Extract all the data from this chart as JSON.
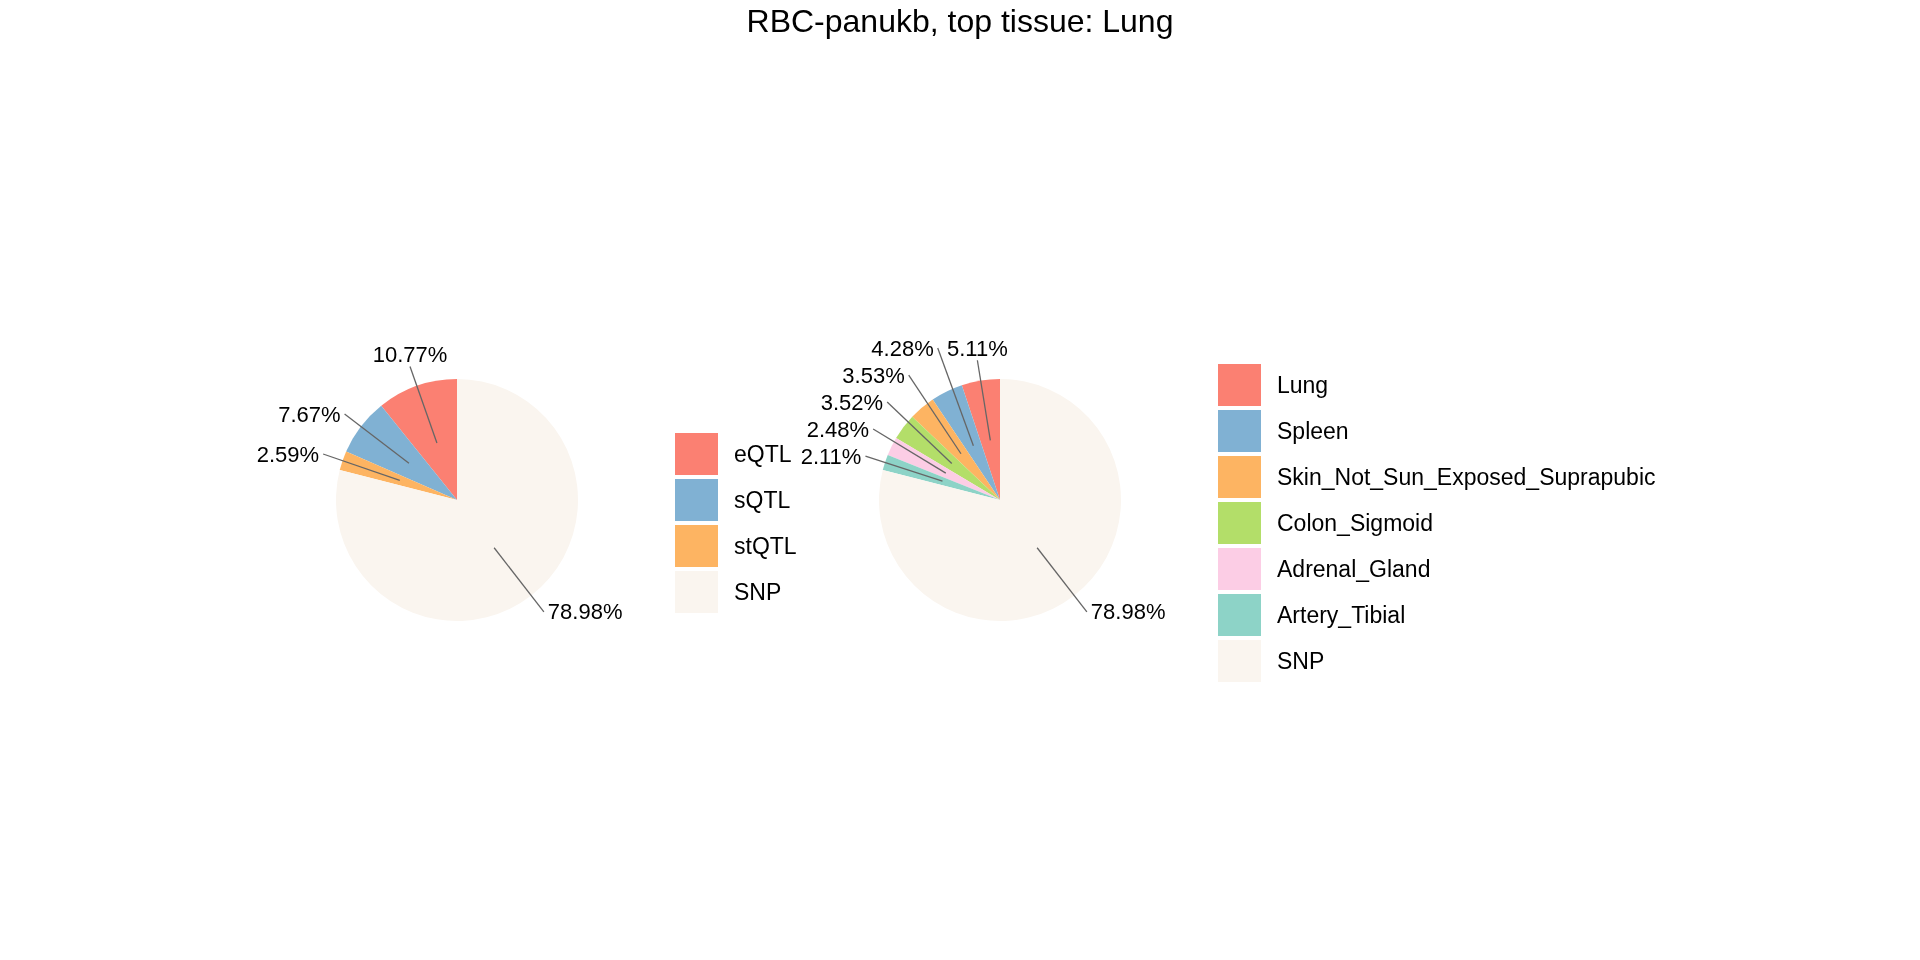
{
  "chart_data": [
    {
      "type": "pie",
      "categories": [
        "eQTL",
        "sQTL",
        "stQTL",
        "SNP"
      ],
      "values": [
        10.77,
        7.67,
        2.59,
        78.98
      ],
      "value_labels": [
        "10.77%",
        "7.67%",
        "2.59%",
        "78.98%"
      ],
      "colors": [
        "#fb8072",
        "#80b1d3",
        "#fdb462",
        "#faf5ef"
      ],
      "legend": "right"
    },
    {
      "type": "pie",
      "title": "RBC-panukb, top tissue: Lung",
      "categories": [
        "Lung",
        "Spleen",
        "Skin_Not_Sun_Exposed_Suprapubic",
        "Colon_Sigmoid",
        "Adrenal_Gland",
        "Artery_Tibial",
        "SNP"
      ],
      "values": [
        5.11,
        4.28,
        3.53,
        3.52,
        2.48,
        2.11,
        78.98
      ],
      "value_labels": [
        "5.11%",
        "4.28%",
        "3.53%",
        "3.52%",
        "2.48%",
        "2.11%",
        "78.98%"
      ],
      "colors": [
        "#fb8072",
        "#80b1d3",
        "#fdb462",
        "#b3de69",
        "#fccde5",
        "#8dd3c7",
        "#faf5ef"
      ],
      "legend": "right"
    }
  ]
}
